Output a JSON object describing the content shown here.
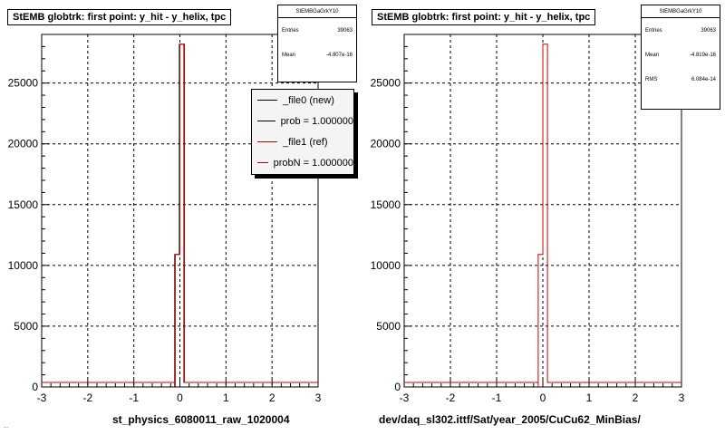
{
  "pads": [
    {
      "title": "StEMB globtrk: first point: y_hit - y_helix, tpc",
      "stats": {
        "name": "StEMBGaGrkY10",
        "rows": [
          {
            "label": "Entries",
            "value": "39063"
          },
          {
            "label": "Mean",
            "value": "-4.807e-16"
          }
        ]
      },
      "legend": [
        {
          "label": "_file0 (new)",
          "color": "#000000"
        },
        {
          "label": "prob = 1.000000",
          "color": "#000000"
        },
        {
          "label": "_file1 (ref)",
          "color": "#cc0000"
        },
        {
          "label": "probN = 1.000000",
          "color": "#cc0000"
        }
      ],
      "xcaption": "st_physics_6080011_raw_1020004"
    },
    {
      "title": "StEMB globtrk: first point: y_hit - y_helix, tpc",
      "stats": {
        "name": "StEMBGaGrkY10",
        "rows": [
          {
            "label": "Entries",
            "value": "39063"
          },
          {
            "label": "Mean",
            "value": "-4.819e-16"
          },
          {
            "label": "RMS",
            "value": "6.084e-14"
          }
        ]
      },
      "legend": [],
      "xcaption": "dev/daq_sl302.ittf/Sat/year_2005/CuCu62_MinBias/"
    }
  ],
  "footer_text": "...",
  "chart_data": [
    {
      "type": "bar",
      "title": "StEMB globtrk: first point: y_hit - y_helix, tpc",
      "xlabel": "st_physics_6080011_raw_1020004",
      "ylabel": "",
      "xlim": [
        -3,
        3
      ],
      "ylim": [
        0,
        29000
      ],
      "xticks": [
        -3,
        -2,
        -1,
        0,
        1,
        2,
        3
      ],
      "yticks": [
        0,
        5000,
        10000,
        15000,
        20000,
        25000
      ],
      "grid": true,
      "legend_position": "top-right",
      "series": [
        {
          "name": "_file0 (new)",
          "color": "#000000",
          "bins": [
            {
              "x0": -0.1,
              "x1": 0.0,
              "y": 10900
            },
            {
              "x0": 0.0,
              "x1": 0.1,
              "y": 28200
            }
          ]
        },
        {
          "name": "_file1 (ref)",
          "color": "#cc0000",
          "bins": [
            {
              "x0": -0.1,
              "x1": 0.0,
              "y": 10900
            },
            {
              "x0": 0.0,
              "x1": 0.1,
              "y": 28200
            }
          ]
        }
      ]
    },
    {
      "type": "bar",
      "title": "StEMB globtrk: first point: y_hit - y_helix, tpc",
      "xlabel": "dev/daq_sl302.ittf/Sat/year_2005/CuCu62_MinBias/",
      "ylabel": "",
      "xlim": [
        -3,
        3
      ],
      "ylim": [
        0,
        29000
      ],
      "xticks": [
        -3,
        -2,
        -1,
        0,
        1,
        2,
        3
      ],
      "yticks": [
        0,
        5000,
        10000,
        15000,
        20000,
        25000
      ],
      "grid": true,
      "series": [
        {
          "name": "",
          "color": "#cc0000",
          "bins": [
            {
              "x0": -0.1,
              "x1": 0.0,
              "y": 10900
            },
            {
              "x0": 0.0,
              "x1": 0.1,
              "y": 28200
            }
          ]
        }
      ]
    }
  ]
}
